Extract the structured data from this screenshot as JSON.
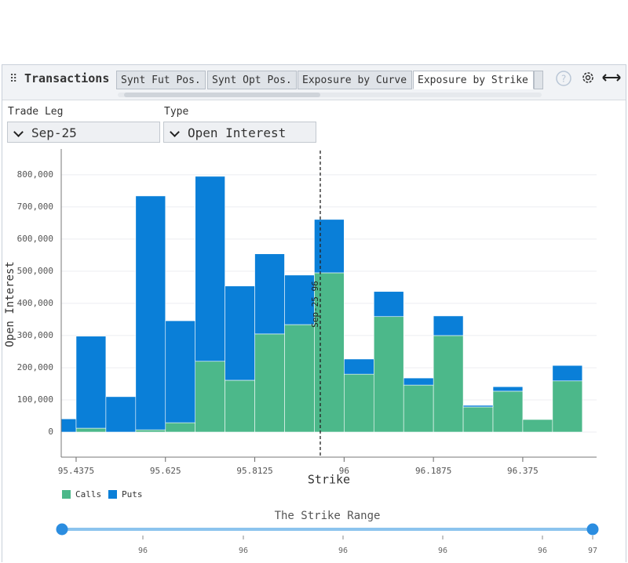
{
  "header": {
    "title": "Transactions",
    "tabs": [
      "Synt Fut Pos.",
      "Synt Opt Pos.",
      "Exposure by Curve",
      "Exposure by Strike"
    ],
    "active_tab": 3
  },
  "filters": [
    {
      "label": "Trade Leg",
      "value": "Sep-25"
    },
    {
      "label": "Type",
      "value": "Open Interest"
    }
  ],
  "chart_data": {
    "type": "stacked_histogram",
    "x_label": "Strike",
    "y_label": "Open Interest",
    "bins": [
      95.40625,
      95.4375,
      95.5,
      95.5625,
      95.625,
      95.6875,
      95.75,
      95.8125,
      95.875,
      95.9375,
      96,
      96.0625,
      96.125,
      96.1875,
      96.25,
      96.3125,
      96.375,
      96.4375,
      96.5
    ],
    "series": [
      {
        "name": "Calls",
        "color": "#4cb88a",
        "values": [
          0,
          12000,
          0,
          7000,
          29000,
          220000,
          161000,
          305000,
          334000,
          495000,
          180000,
          359000,
          146000,
          300000,
          78000,
          127000,
          39000,
          159000
        ]
      },
      {
        "name": "Puts",
        "color": "#0a7fd8",
        "values": [
          41000,
          286000,
          110000,
          727000,
          317000,
          575000,
          293000,
          249000,
          154000,
          166000,
          47000,
          78000,
          22000,
          61000,
          5000,
          14000,
          0,
          48000
        ]
      }
    ],
    "xlim": [
      95.40625,
      96.53
    ],
    "xticks": [
      95.4375,
      95.625,
      95.8125,
      96,
      96.1875,
      96.375
    ],
    "ylim": [
      -78000,
      880000
    ],
    "yticks": [
      0,
      {
        "value": 100000,
        "label": "100,000"
      },
      {
        "value": 200000,
        "label": "200,000"
      },
      {
        "value": 300000,
        "label": "300,000"
      },
      {
        "value": 400000,
        "label": "400,000"
      },
      {
        "value": 500000,
        "label": "500,000"
      },
      {
        "value": 600000,
        "label": "600,000"
      },
      {
        "value": 700000,
        "label": "700,000"
      },
      {
        "value": 800000,
        "label": "800,000"
      }
    ],
    "grid": true,
    "legend": "bottom-left",
    "annotations": [
      {
        "x": 95.95,
        "label": "Sep-25 96"
      }
    ]
  },
  "slider": {
    "title": "The Strike Range",
    "labels": [
      "96",
      "96",
      "96",
      "96",
      "96",
      "97"
    ]
  }
}
